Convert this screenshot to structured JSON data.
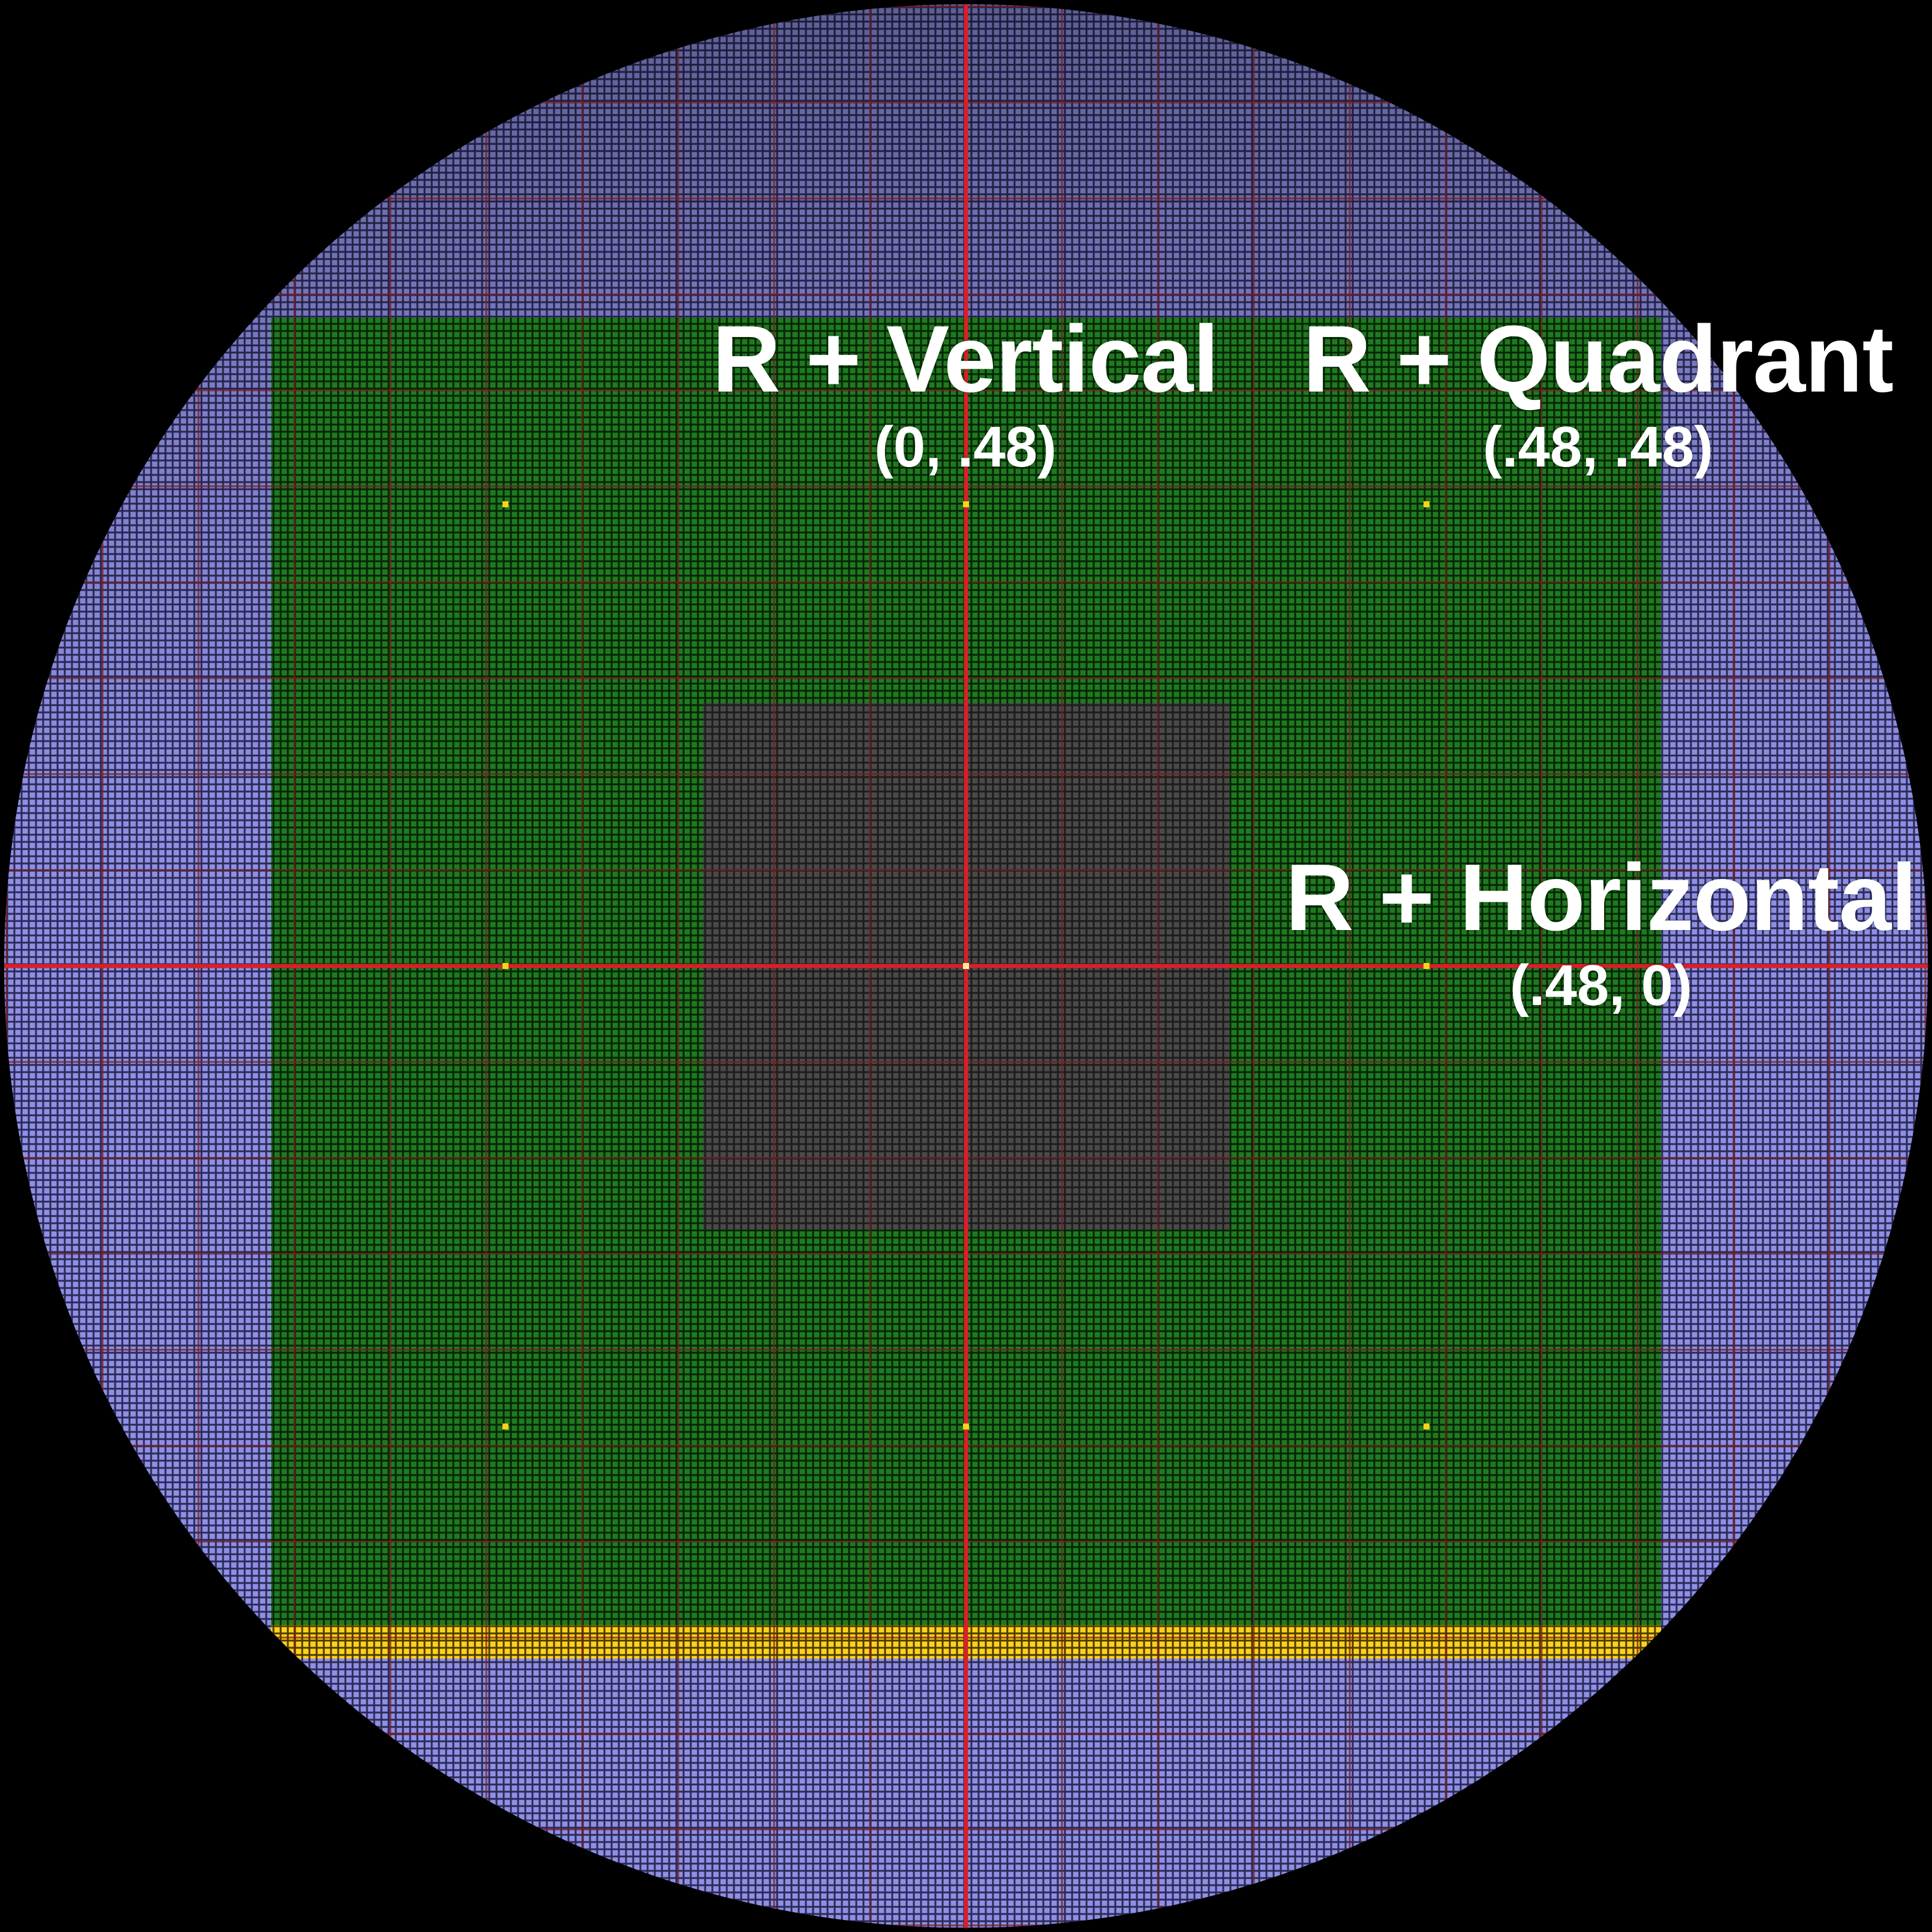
{
  "labels": {
    "vertical": {
      "title": "R + Vertical",
      "coords": "(0, .48)"
    },
    "quadrant": {
      "title": "R + Quadrant",
      "coords": "(.48, .48)"
    },
    "horizontal": {
      "title": "R + Horizontal",
      "coords": "(.48, 0)"
    }
  },
  "colors": {
    "background": "#000000",
    "outer_cells": "#8f8fe6",
    "core_cells": "#1f7a1f",
    "center_cells": "#4a4a4a",
    "edge_band": "#ffd21a",
    "axis_line": "#d8202a",
    "grid_line": "#7a1c22",
    "markers": "#ffd21a"
  }
}
